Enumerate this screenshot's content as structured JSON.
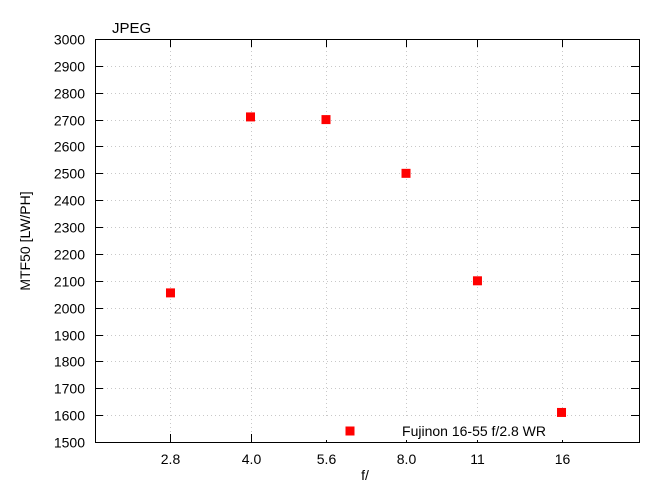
{
  "chart_data": {
    "type": "scatter",
    "title": "JPEG",
    "xlabel": "f/",
    "ylabel": "MTF50 [LW/PH]",
    "x_scale": "log2",
    "xlim": [
      2.0,
      22.6
    ],
    "ylim": [
      1500,
      3000
    ],
    "x_ticks": [
      {
        "value": 2.8,
        "label": "2.8"
      },
      {
        "value": 4.0,
        "label": "4.0"
      },
      {
        "value": 5.6,
        "label": "5.6"
      },
      {
        "value": 8.0,
        "label": "8.0"
      },
      {
        "value": 11,
        "label": "11"
      },
      {
        "value": 16,
        "label": "16"
      }
    ],
    "y_ticks": [
      1500,
      1600,
      1700,
      1800,
      1900,
      2000,
      2100,
      2200,
      2300,
      2400,
      2500,
      2600,
      2700,
      2800,
      2900,
      3000
    ],
    "grid": true,
    "legend_position": "bottom-right",
    "series": [
      {
        "name": "Fujinon 16-55 f/2.8 WR",
        "color": "#ff0000",
        "marker": "square",
        "points": [
          {
            "x": 2.8,
            "y": 2055
          },
          {
            "x": 4.0,
            "y": 2710
          },
          {
            "x": 5.6,
            "y": 2700
          },
          {
            "x": 8.0,
            "y": 2500
          },
          {
            "x": 11,
            "y": 2100
          },
          {
            "x": 16,
            "y": 1610
          }
        ]
      }
    ]
  }
}
